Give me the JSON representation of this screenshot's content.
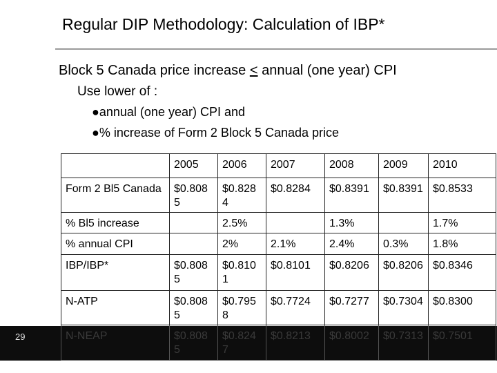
{
  "header": {
    "title": "Regular DIP Methodology:  Calculation of IBP*"
  },
  "body": {
    "heading": {
      "before": "Block 5 Canada price increase ",
      "symbol": "<",
      "after": " annual (one year) CPI"
    },
    "subheading": "Use lower of :",
    "bullets": [
      "●annual (one year)  CPI and",
      "●% increase of Form 2 Block 5 Canada price"
    ]
  },
  "table": {
    "rows": [
      [
        null,
        "2005",
        "2006",
        "2007",
        "2008",
        "2009",
        "2010"
      ],
      [
        "Form 2 Bl5 Canada",
        "$0.8085",
        "$0.8284",
        "$0.8284",
        "$0.8391",
        "$0.8391",
        "$0.8533"
      ],
      [
        "% Bl5 increase",
        null,
        "2.5%",
        null,
        "1.3%",
        null,
        "1.7%"
      ],
      [
        "% annual CPI",
        null,
        "2%",
        "2.1%",
        "2.4%",
        "0.3%",
        "1.8%"
      ],
      [
        "IBP/IBP*",
        "$0.8085",
        "$0.8101",
        "$0.8101",
        "$0.8206",
        "$0.8206",
        "$0.8346"
      ],
      [
        "N-ATP",
        "$0.8085",
        "$0.7958",
        "$0.7724",
        "$0.7277",
        "$0.7304",
        "$0.8300"
      ],
      [
        "N-NEAP",
        "$0.8085",
        "$0.8247",
        "$0.8213",
        "$0.8002",
        "$0.7313",
        "$0.7501"
      ]
    ]
  },
  "footer": {
    "page_number": "29"
  }
}
